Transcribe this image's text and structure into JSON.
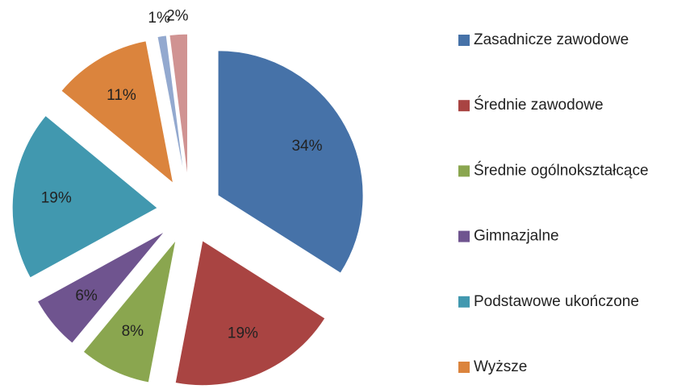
{
  "chart_data": {
    "type": "pie",
    "categories": [
      "Zasadnicze zawodowe",
      "Średnie zawodowe",
      "Średnie ogólnokształcące",
      "Gimnazjalne",
      "Podstawowe ukończone",
      "Wyższe",
      null,
      null
    ],
    "values": [
      34,
      19,
      8,
      6,
      19,
      11,
      1,
      2
    ],
    "value_labels": [
      "34%",
      "19%",
      "8%",
      "6%",
      "19%",
      "11%",
      "1%",
      "2%"
    ],
    "colors": [
      "#4672a8",
      "#a94442",
      "#8aa64f",
      "#6f548f",
      "#4198af",
      "#db843d",
      "#93a9cf",
      "#d09392"
    ],
    "legend": "right"
  }
}
